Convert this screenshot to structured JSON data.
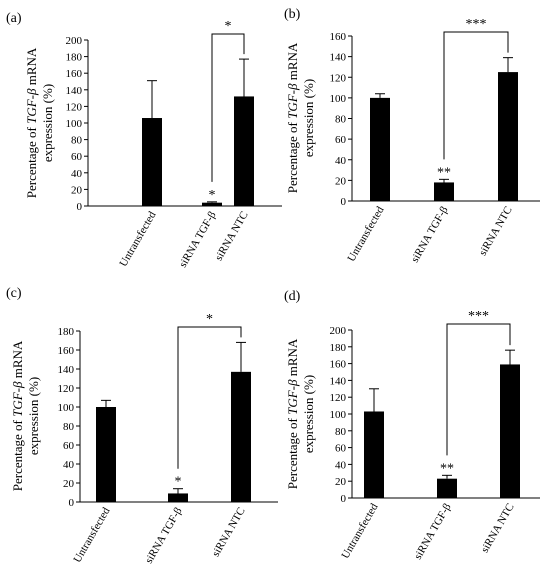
{
  "chart_data": [
    {
      "type": "bar",
      "panel_label": "(a)",
      "categories": [
        "Untransfected",
        "siRNA TGF-β",
        "siRNA NTC"
      ],
      "values": [
        106,
        4,
        132
      ],
      "errors": [
        45,
        1,
        45
      ],
      "significance": [
        "",
        "*",
        ""
      ],
      "bracket": {
        "from": 1,
        "to": 2,
        "label": "*"
      },
      "ylabel_prefix": "Percentage of ",
      "ylabel_gene": "TGF-β",
      "ylabel_suffix": " mRNA",
      "ylabel_line2": "expression (%)",
      "ylim": [
        0,
        200
      ],
      "yticks": [
        "0",
        "20",
        "40",
        "60",
        "80",
        "100",
        "120",
        "140",
        "160",
        "180",
        "200"
      ],
      "bar_color": "#000000"
    },
    {
      "type": "bar",
      "panel_label": "(b)",
      "categories": [
        "Untransfected",
        "siRNA TGF-β",
        "siRNA NTC"
      ],
      "values": [
        100,
        18,
        125
      ],
      "errors": [
        4,
        3,
        14
      ],
      "significance": [
        "",
        "**",
        ""
      ],
      "bracket": {
        "from": 1,
        "to": 2,
        "label": "***"
      },
      "ylabel_prefix": "Percentage of ",
      "ylabel_gene": "TGF-β",
      "ylabel_suffix": " mRNA",
      "ylabel_line2": "expression (%)",
      "ylim": [
        0,
        160
      ],
      "yticks": [
        "0",
        "20",
        "40",
        "60",
        "80",
        "100",
        "120",
        "140",
        "160"
      ],
      "bar_color": "#000000"
    },
    {
      "type": "bar",
      "panel_label": "(c)",
      "categories": [
        "Untransfected",
        "siRNA TGF-β",
        "siRNA NTC"
      ],
      "values": [
        100,
        9,
        137
      ],
      "errors": [
        7,
        5,
        31
      ],
      "significance": [
        "",
        "*",
        ""
      ],
      "bracket": {
        "from": 1,
        "to": 2,
        "label": "*"
      },
      "ylabel_prefix": "Percentage of ",
      "ylabel_gene": "TGF-β",
      "ylabel_suffix": " mRNA",
      "ylabel_line2": "expression (%)",
      "ylim": [
        0,
        180
      ],
      "yticks": [
        "0",
        "20",
        "40",
        "60",
        "80",
        "100",
        "120",
        "140",
        "160",
        "180"
      ],
      "bar_color": "#000000"
    },
    {
      "type": "bar",
      "panel_label": "(d)",
      "categories": [
        "Untransfected",
        "siRNA TGF-β",
        "siRNA NTC"
      ],
      "values": [
        103,
        23,
        159
      ],
      "errors": [
        27,
        4,
        17
      ],
      "significance": [
        "",
        "**",
        ""
      ],
      "bracket": {
        "from": 1,
        "to": 2,
        "label": "***"
      },
      "ylabel_prefix": "Percentage of ",
      "ylabel_gene": "TGF-β",
      "ylabel_suffix": " mRNA",
      "ylabel_line2": "expression (%)",
      "ylim": [
        0,
        200
      ],
      "yticks": [
        "0",
        "20",
        "40",
        "60",
        "80",
        "100",
        "120",
        "140",
        "160",
        "180",
        "200"
      ],
      "bar_color": "#000000"
    }
  ]
}
